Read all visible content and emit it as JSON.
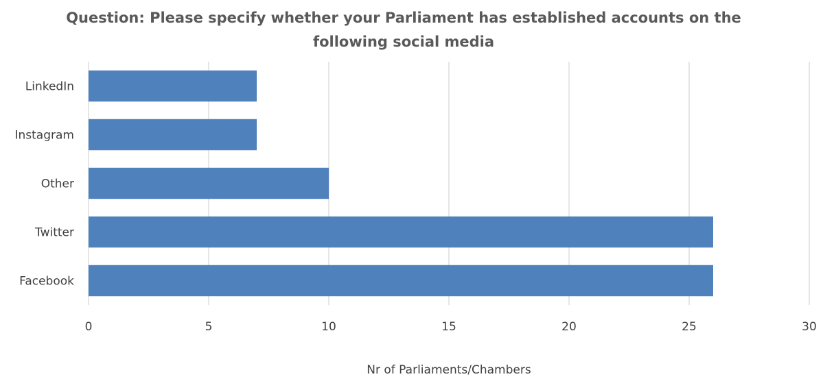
{
  "chart_data": {
    "type": "bar",
    "orientation": "horizontal",
    "title_lines": [
      "Question: Please specify whether your Parliament has established accounts on the",
      "following social media"
    ],
    "categories": [
      "LinkedIn",
      "Instagram",
      "Other",
      "Twitter",
      "Facebook"
    ],
    "values": [
      7,
      7,
      10,
      26,
      26
    ],
    "xlabel": "Nr of Parliaments/Chambers",
    "ylabel": "",
    "xlim": [
      0,
      30
    ],
    "xticks": [
      0,
      5,
      10,
      15,
      20,
      25,
      30
    ],
    "grid": true,
    "legend": "none",
    "bar_color": "#4f81bd",
    "grid_color": "#d9d9d9"
  }
}
